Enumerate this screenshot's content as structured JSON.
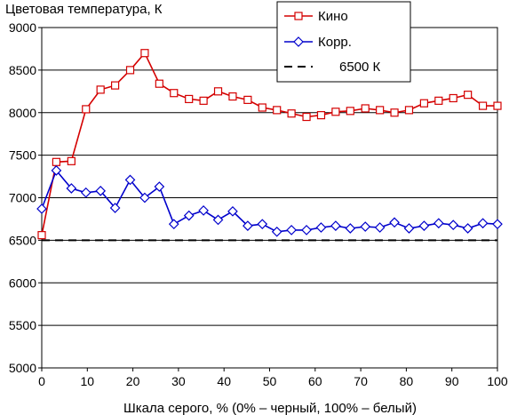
{
  "chart_data": {
    "type": "line",
    "ylabel": "Цветовая температура, К",
    "xlabel": "Шкала серого, % (0% – черный, 100% – белый)",
    "xlim": [
      0,
      100
    ],
    "ylim": [
      5000,
      9000
    ],
    "x_ticks": [
      "0",
      "10",
      "20",
      "30",
      "40",
      "50",
      "60",
      "70",
      "80",
      "90",
      "100"
    ],
    "y_ticks": [
      "5000",
      "5500",
      "6000",
      "6500",
      "7000",
      "7500",
      "8000",
      "8500",
      "9000"
    ],
    "grid": true,
    "legend_position": "top-right",
    "x": [
      0,
      3.2,
      6.5,
      9.7,
      12.9,
      16.1,
      19.4,
      22.6,
      25.8,
      29.0,
      32.3,
      35.5,
      38.7,
      41.9,
      45.2,
      48.4,
      51.6,
      54.8,
      58.1,
      61.3,
      64.5,
      67.7,
      71.0,
      74.2,
      77.4,
      80.6,
      83.9,
      87.1,
      90.3,
      93.5,
      96.8,
      100
    ],
    "series": [
      {
        "name": "Кино",
        "color": "#d40000",
        "marker": "square",
        "values": [
          6560,
          7420,
          7430,
          8040,
          8270,
          8320,
          8500,
          8700,
          8340,
          8230,
          8160,
          8140,
          8250,
          8190,
          8150,
          8060,
          8030,
          7990,
          7950,
          7970,
          8010,
          8020,
          8050,
          8030,
          8000,
          8030,
          8110,
          8140,
          8170,
          8210,
          8080,
          8080
        ]
      },
      {
        "name": "Корр.",
        "color": "#0000cc",
        "marker": "diamond",
        "values": [
          6870,
          7320,
          7110,
          7060,
          7080,
          6880,
          7210,
          7000,
          7130,
          6690,
          6790,
          6850,
          6740,
          6840,
          6670,
          6690,
          6600,
          6620,
          6620,
          6650,
          6670,
          6640,
          6660,
          6650,
          6710,
          6640,
          6670,
          6700,
          6680,
          6640,
          6700,
          6690
        ]
      },
      {
        "name": "6500 К",
        "color": "#000000",
        "style": "dashed",
        "x": [
          0,
          100
        ],
        "values": [
          6500,
          6500
        ]
      }
    ]
  }
}
